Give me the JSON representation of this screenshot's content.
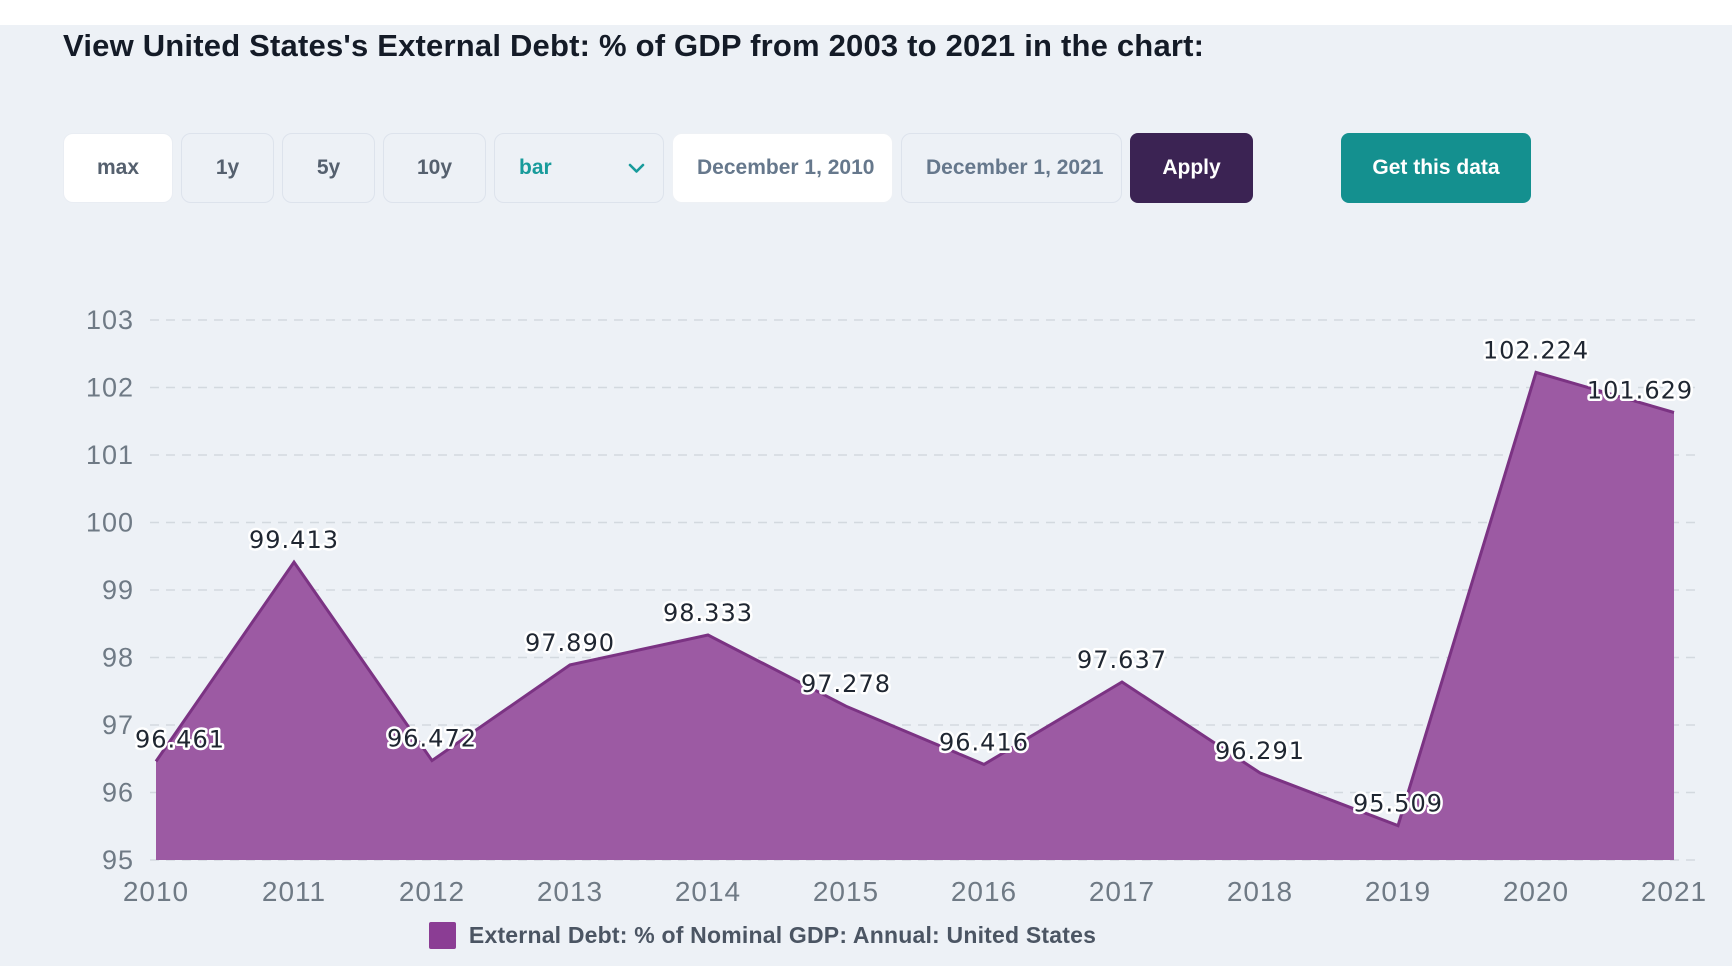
{
  "page": {
    "title": "View United States's External Debt: % of GDP from 2003 to 2021 in the chart:"
  },
  "controls": {
    "range_buttons": [
      {
        "label": "max",
        "active": true
      },
      {
        "label": "1y",
        "active": false
      },
      {
        "label": "5y",
        "active": false
      },
      {
        "label": "10y",
        "active": false
      }
    ],
    "chart_type_select": {
      "value": "bar",
      "icon": "chevron-down-icon",
      "accent_color": "#189b9b"
    },
    "start_date": {
      "value": "December 1, 2010"
    },
    "end_date": {
      "value": "December 1, 2021"
    },
    "apply_label": "Apply",
    "get_data_label": "Get this data",
    "apply_color": "#3b2353",
    "get_data_color": "#14908f"
  },
  "chart_data": {
    "type": "area",
    "title": "",
    "xlabel": "",
    "ylabel": "",
    "x": [
      2010,
      2011,
      2012,
      2013,
      2014,
      2015,
      2016,
      2017,
      2018,
      2019,
      2020,
      2021
    ],
    "values": [
      96.461,
      99.413,
      96.472,
      97.89,
      98.333,
      97.278,
      96.416,
      97.637,
      96.291,
      95.509,
      102.224,
      101.629
    ],
    "series_name": "External Debt: % of Nominal GDP: Annual: United States",
    "ylim": [
      95,
      103
    ],
    "yticks": [
      95,
      96,
      97,
      98,
      99,
      100,
      101,
      102,
      103
    ],
    "grid": true,
    "grid_style": "dashed",
    "legend_position": "bottom",
    "fill_color": "#9c5aa3",
    "line_color": "#7b3383",
    "background_color": "#edf1f6",
    "axis_label_color": "#6f7a85",
    "data_label_color": "#1f2631"
  },
  "legend": {
    "swatch_color": "#8b3d94",
    "label": "External Debt: % of Nominal GDP: Annual: United States"
  }
}
